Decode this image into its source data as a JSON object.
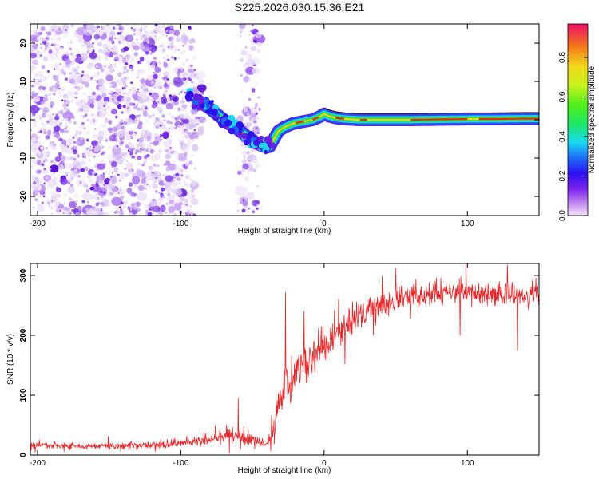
{
  "figure_title": "S225.2026.030.15.36.E21",
  "colors": {
    "line": "#e8282a",
    "ridge_green": "#22e34a",
    "scatter_violet": "#6a1ee0",
    "scatter_light": "#cdb4f4"
  },
  "chart_data": [
    {
      "type": "heatmap",
      "title": "",
      "xlabel": "Height of straight line (km)",
      "ylabel": "Frequency (Hz)",
      "xlim": [
        -205,
        150
      ],
      "ylim": [
        -25,
        25
      ],
      "x_ticks": [
        {
          "value": -200,
          "label": "-200"
        },
        {
          "value": -100,
          "label": "-100"
        },
        {
          "value": 0,
          "label": "0"
        },
        {
          "value": 100,
          "label": "100"
        }
      ],
      "y_ticks": [
        {
          "value": 20,
          "label": "20"
        },
        {
          "value": 10,
          "label": "10"
        },
        {
          "value": 0,
          "label": "0"
        },
        {
          "value": -10,
          "label": "-10"
        },
        {
          "value": -20,
          "label": "-20"
        }
      ],
      "colorbar": {
        "label": "Normalized spectral amplitude",
        "range": [
          0.0,
          0.97
        ],
        "ticks": [
          {
            "value": 0.0,
            "label": "0.0"
          },
          {
            "value": 0.2,
            "label": "0.2"
          },
          {
            "value": 0.4,
            "label": "0.4"
          },
          {
            "value": 0.6,
            "label": "0.6"
          },
          {
            "value": 0.8,
            "label": "0.8"
          }
        ]
      },
      "ridge": {
        "x": [
          -88,
          -80,
          -70,
          -62,
          -55,
          -48,
          -42,
          -38,
          -35,
          -32,
          -28,
          -22,
          -15,
          -8,
          -3,
          0,
          3,
          8,
          15,
          25,
          40,
          60,
          80,
          100,
          120,
          140,
          150
        ],
        "y": [
          5,
          3,
          0,
          -2,
          -4,
          -6,
          -7,
          -7,
          -5,
          -3,
          -2,
          -1,
          -0.5,
          0,
          0.8,
          1.5,
          1,
          0.5,
          0.2,
          0,
          0,
          0,
          0.1,
          0.2,
          0.2,
          0.3,
          0.3
        ]
      },
      "noise_regions": [
        {
          "x_start": -205,
          "x_end": -90,
          "y_min": -25,
          "y_max": 25,
          "density": "high"
        },
        {
          "x_start": -100,
          "x_end": -85,
          "y_min": -5,
          "y_max": 12,
          "density": "high"
        },
        {
          "x_start": -60,
          "x_end": -45,
          "y_min": -25,
          "y_max": 25,
          "density": "medium"
        }
      ]
    },
    {
      "type": "line",
      "title": "",
      "xlabel": "Height of straight line (km)",
      "ylabel": "SNR (10 * v/v)",
      "xlim": [
        -205,
        150
      ],
      "ylim": [
        0,
        320
      ],
      "x_ticks": [
        {
          "value": -200,
          "label": "-200"
        },
        {
          "value": -100,
          "label": "-100"
        },
        {
          "value": 0,
          "label": "0"
        },
        {
          "value": 100,
          "label": "100"
        }
      ],
      "y_ticks": [
        {
          "value": 300,
          "label": "300"
        },
        {
          "value": 200,
          "label": "200"
        },
        {
          "value": 100,
          "label": "100"
        },
        {
          "value": 0,
          "label": "0"
        }
      ],
      "series": [
        {
          "name": "SNR",
          "trend_x": [
            -205,
            -150,
            -110,
            -90,
            -75,
            -65,
            -55,
            -45,
            -40,
            -35,
            -30,
            -25,
            -20,
            -10,
            0,
            10,
            20,
            30,
            40,
            50,
            60,
            80,
            100,
            120,
            140,
            150
          ],
          "trend_y": [
            15,
            15,
            18,
            22,
            28,
            35,
            30,
            20,
            18,
            50,
            105,
            120,
            135,
            160,
            185,
            205,
            225,
            240,
            250,
            262,
            265,
            268,
            270,
            268,
            266,
            265
          ],
          "spread": [
            6,
            6,
            7,
            8,
            12,
            18,
            14,
            8,
            8,
            25,
            40,
            45,
            40,
            35,
            32,
            30,
            28,
            25,
            22,
            22,
            22,
            22,
            22,
            22,
            20,
            20
          ],
          "spikes": [
            {
              "x": -60,
              "y": 95
            },
            {
              "x": -27,
              "y": 272
            },
            {
              "x": -14,
              "y": 240
            },
            {
              "x": 50,
              "y": 312
            },
            {
              "x": 128,
              "y": 318
            },
            {
              "x": 135,
              "y": 175
            },
            {
              "x": 95,
              "y": 200
            }
          ]
        }
      ]
    }
  ]
}
